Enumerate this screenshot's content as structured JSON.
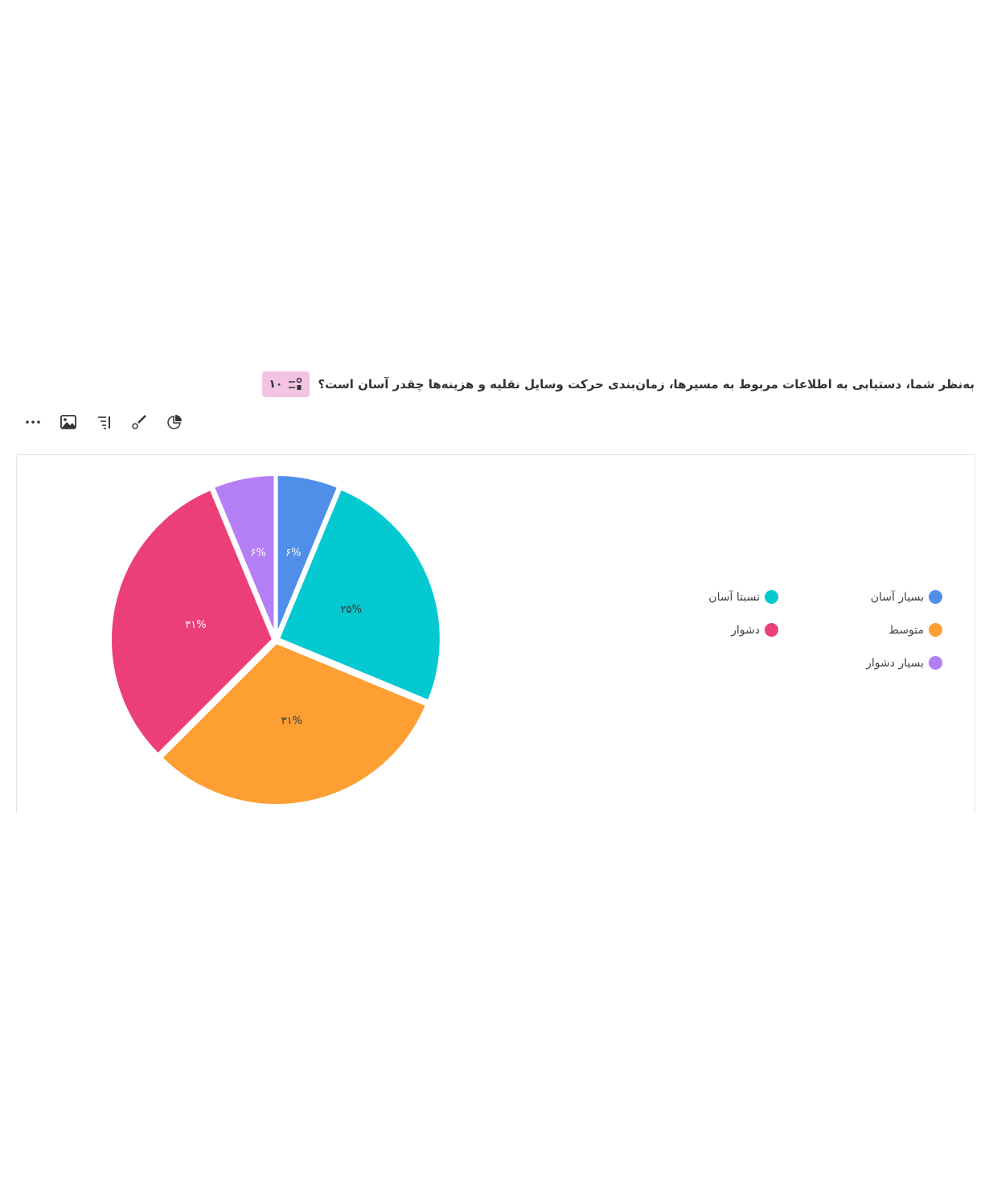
{
  "question": {
    "number": "۱۰",
    "title": "به‌نظر شما، دستیابی به اطلاعات مربوط به مسیرها، زمان‌بندی حرکت وسایل نقلیه و هزینه‌ها چقدر آسان است؟",
    "icon": "ranking-icon"
  },
  "toolbar": [
    {
      "icon": "more-icon"
    },
    {
      "icon": "image-icon"
    },
    {
      "icon": "sort-icon"
    },
    {
      "icon": "brush-icon"
    },
    {
      "icon": "pie-chart-icon"
    }
  ],
  "chart_data": {
    "type": "pie",
    "categories": [
      "بسیار آسان",
      "نسبتا آسان",
      "متوسط",
      "دشوار",
      "بسیار دشوار"
    ],
    "values": [
      6.25,
      25,
      31.25,
      31.25,
      6.25
    ],
    "labels": [
      "۶%",
      "۲۵%",
      "۳۱%",
      "۳۱%",
      "۶%"
    ],
    "colors": [
      "#4f8fea",
      "#05c9d1",
      "#fd9f33",
      "#ec3f77",
      "#b47ff5"
    ],
    "legend_placement": "right"
  }
}
